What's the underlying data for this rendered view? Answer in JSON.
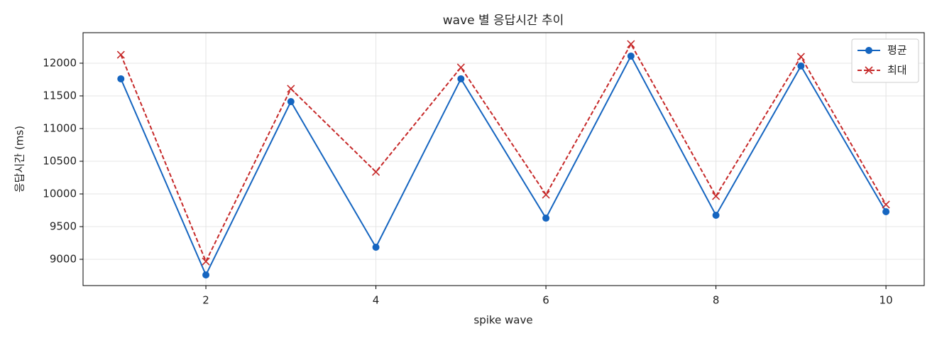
{
  "chart_data": {
    "type": "line",
    "title": "wave 별 응답시간 추이",
    "x_label": "spike wave",
    "y_label": "응답시간 (ms)",
    "x": [
      1,
      2,
      3,
      4,
      5,
      6,
      7,
      8,
      9,
      10
    ],
    "series": [
      {
        "name": "평균",
        "color": "#1565c0",
        "marker": "circle",
        "linestyle": "solid",
        "values": [
          11761,
          8761,
          11413,
          9185,
          11761,
          9630,
          12109,
          9674,
          11957,
          9728
        ]
      },
      {
        "name": "최대",
        "color": "#c62828",
        "marker": "x",
        "linestyle": "dashed",
        "values": [
          12130,
          8967,
          11609,
          10337,
          11935,
          9989,
          12293,
          9967,
          12098,
          9837
        ]
      }
    ],
    "xlim": [
      0.555,
      10.45
    ],
    "ylim": [
      8598,
      12467
    ],
    "xticks": [
      2,
      4,
      6,
      8,
      10
    ],
    "yticks": [
      9000,
      9500,
      10000,
      10500,
      11000,
      11500,
      12000
    ],
    "grid": true,
    "legend": "upper right"
  }
}
